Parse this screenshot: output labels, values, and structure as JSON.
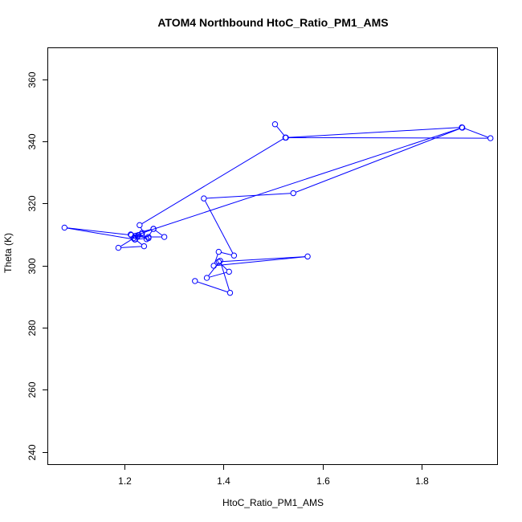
{
  "chart_data": {
    "type": "scatter",
    "title": "ATOM4 Northbound HtoC_Ratio_PM1_AMS",
    "xlabel": "HtoC_Ratio_PM1_AMS",
    "ylabel": "Theta (K)",
    "xlim": [
      1.045,
      1.955
    ],
    "ylim": [
      236,
      370
    ],
    "xticks": [
      1.2,
      1.4,
      1.6,
      1.8
    ],
    "yticks": [
      240,
      260,
      280,
      300,
      320,
      340,
      360
    ],
    "grid": false,
    "legend": "none",
    "colors": {
      "series": "#0000ff",
      "axes": "#000000",
      "background": "#ffffff"
    },
    "series": [
      {
        "x": [
          1.504,
          1.526,
          1.882,
          1.94,
          1.525,
          1.23,
          1.244,
          1.258,
          1.212,
          1.248,
          1.28,
          1.258,
          1.221,
          1.22,
          1.078,
          1.213,
          1.248,
          1.221,
          1.239,
          1.187,
          1.218,
          1.226,
          1.228,
          1.235,
          1.883,
          1.541,
          1.36,
          1.421,
          1.39,
          1.38,
          1.57,
          1.39,
          1.411,
          1.366,
          1.393,
          1.413,
          1.342
        ],
        "y": [
          345.5,
          341.2,
          344.5,
          341.0,
          341.2,
          313.0,
          308.5,
          311.8,
          310.0,
          309.2,
          309.2,
          311.8,
          309.5,
          308.4,
          312.2,
          309.8,
          308.8,
          308.4,
          306.2,
          305.7,
          308.8,
          309.4,
          309.8,
          310.5,
          344.4,
          323.3,
          321.6,
          303.2,
          304.4,
          299.9,
          302.9,
          301.2,
          298.0,
          296.0,
          301.5,
          291.2,
          295.0
        ]
      }
    ]
  }
}
